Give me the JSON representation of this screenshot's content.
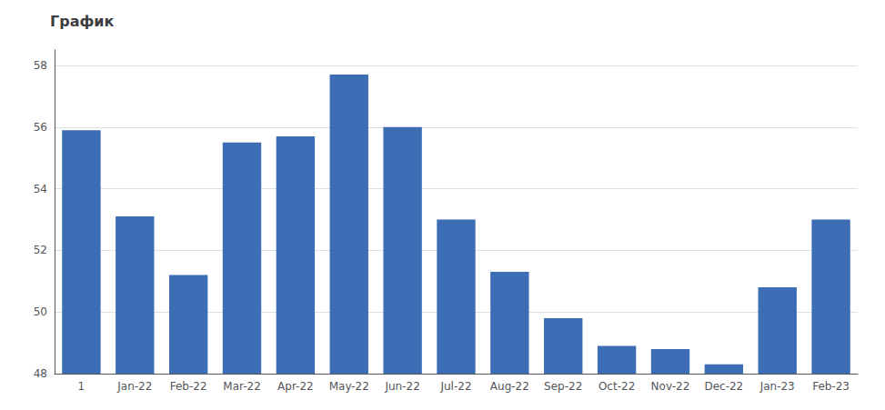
{
  "chart_data": {
    "type": "bar",
    "title": "График",
    "categories": [
      "1",
      "Jan-22",
      "Feb-22",
      "Mar-22",
      "Apr-22",
      "May-22",
      "Jun-22",
      "Jul-22",
      "Aug-22",
      "Sep-22",
      "Oct-22",
      "Nov-22",
      "Dec-22",
      "Jan-23",
      "Feb-23"
    ],
    "values": [
      55.9,
      53.1,
      51.2,
      55.5,
      55.7,
      57.7,
      56.0,
      53.0,
      51.3,
      49.8,
      48.9,
      48.8,
      48.3,
      50.8,
      53.0
    ],
    "color": "#3C6DB5",
    "ylim": [
      48,
      58.5
    ],
    "yticks": [
      48,
      50,
      52,
      54,
      56,
      58
    ],
    "grid": true
  }
}
